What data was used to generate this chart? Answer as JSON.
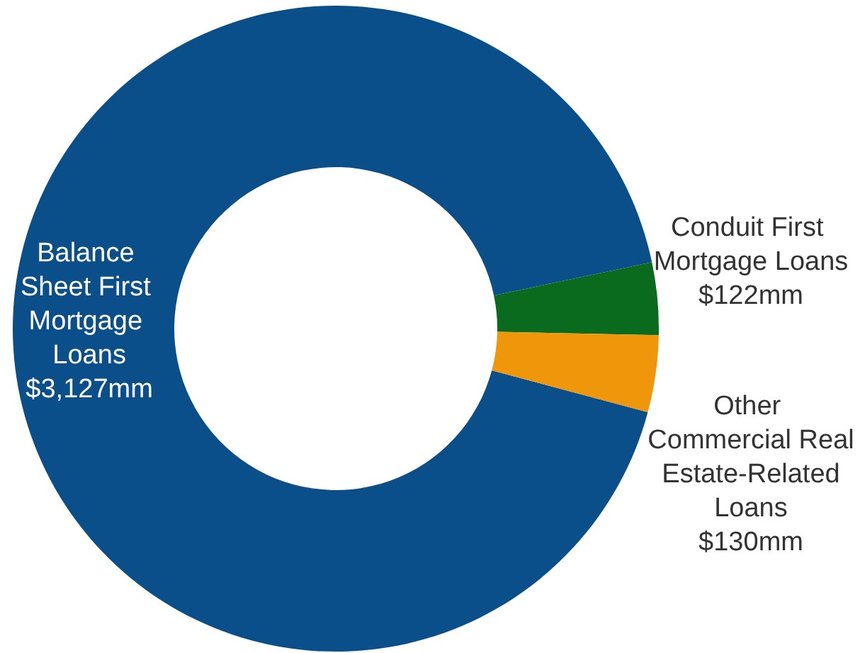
{
  "chart_data": {
    "type": "donut",
    "categories": [
      "Balance Sheet First Mortgage Loans",
      "Conduit First Mortgage Loans",
      "Other Commercial Real Estate-Related Loans"
    ],
    "values": [
      3127,
      122,
      130
    ],
    "value_labels": [
      "$3,127mm",
      "$122mm",
      "$130mm"
    ],
    "colors": [
      "#0b4f8a",
      "#0a6a1e",
      "#f0960a"
    ],
    "legend": false
  }
}
